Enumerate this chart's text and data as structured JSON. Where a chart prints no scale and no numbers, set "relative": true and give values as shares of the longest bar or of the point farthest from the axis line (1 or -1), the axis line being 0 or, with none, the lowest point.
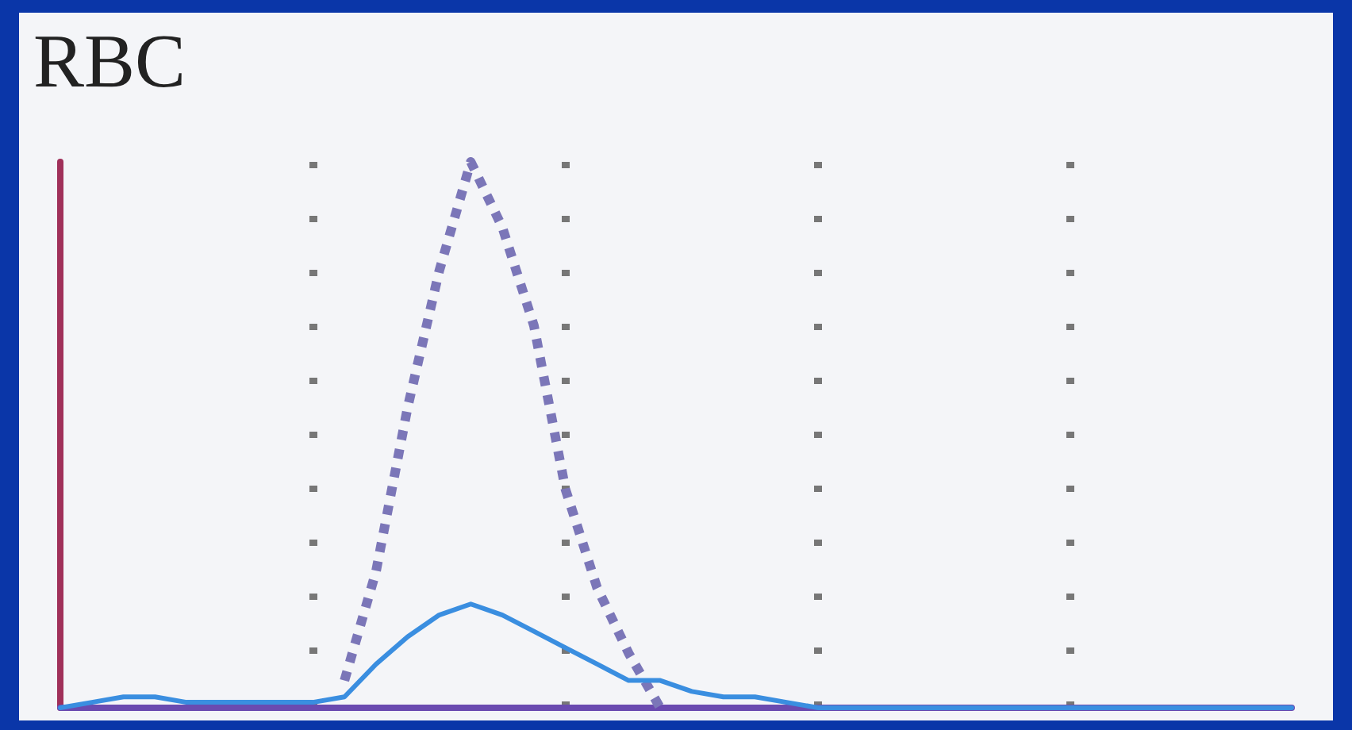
{
  "chart_data": {
    "type": "line",
    "title": "RBC",
    "relative": true,
    "grid": "x",
    "marker": "none",
    "categories": [
      null,
      null,
      null,
      null,
      null,
      null,
      null,
      null,
      null,
      null,
      null,
      null,
      null,
      null,
      null,
      null,
      null,
      null,
      null,
      null,
      null,
      null,
      null,
      null,
      null,
      null,
      null,
      null,
      null,
      null,
      null,
      null,
      null,
      null,
      null,
      null,
      null,
      null,
      null,
      null
    ],
    "series": [
      {
        "color": "#7b76b8",
        "line_style": "dotted",
        "values": [
          null,
          null,
          null,
          null,
          null,
          null,
          null,
          null,
          null,
          0.05,
          0.25,
          0.55,
          0.8,
          1,
          0.88,
          0.7,
          0.4,
          0.22,
          0.1,
          0,
          null,
          null,
          null,
          null,
          null,
          null,
          null,
          null,
          null,
          null,
          null,
          null,
          null,
          null,
          null,
          null,
          null,
          null,
          null,
          null
        ]
      },
      {
        "color": "#3a8ee0",
        "line_style": "solid",
        "values": [
          0,
          0.01,
          0.02,
          0.02,
          0.01,
          0.01,
          0.01,
          0.01,
          0.01,
          0.02,
          0.08,
          0.13,
          0.17,
          0.19,
          0.17,
          0.14,
          0.11,
          0.08,
          0.05,
          0.05,
          0.03,
          0.02,
          0.02,
          0.01,
          0,
          0,
          0,
          0,
          0,
          0,
          0,
          0,
          0,
          0,
          0,
          0,
          0,
          0,
          0,
          0
        ]
      }
    ]
  }
}
